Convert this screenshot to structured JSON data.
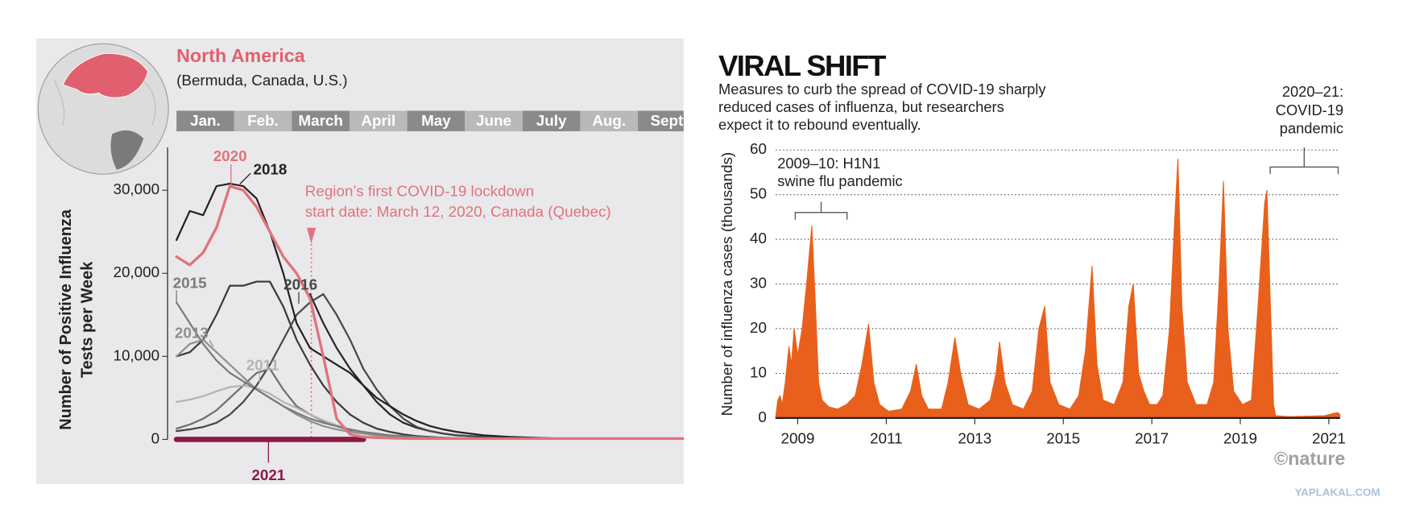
{
  "chart_data": [
    {
      "type": "line",
      "title": "North America",
      "subtitle": "(Bermuda, Canada, U.S.)",
      "months": [
        "Jan.",
        "Feb.",
        "March",
        "April",
        "May",
        "June",
        "July",
        "Aug.",
        "Sept"
      ],
      "ylabel": [
        "Number of Positive Influenza",
        "Tests per Week"
      ],
      "ylim": [
        0,
        35000
      ],
      "yticks": [
        0,
        {
          "value": 10000,
          "label": "10,000"
        },
        {
          "value": 20000,
          "label": "20,000"
        },
        {
          "value": 30000,
          "label": "30,000"
        }
      ],
      "annotation": [
        "Region’s first COVID-19 lockdown",
        "start date: March 12, 2020, Canada (Quebec)"
      ],
      "series": [
        {
          "color": "#3a3a3a",
          "values": [
            10000,
            10500,
            12000,
            15000,
            18500,
            18500,
            19000,
            19000,
            16000,
            12000,
            9000,
            6500,
            4500,
            3000,
            2000,
            1300,
            900,
            600,
            400,
            300,
            200,
            150,
            100,
            100,
            100,
            100,
            100,
            100,
            100,
            100,
            100,
            100,
            100,
            100,
            100,
            100,
            100,
            100,
            100
          ]
        },
        {
          "color": "#262626",
          "values": [
            null,
            null,
            null,
            null,
            null,
            null,
            null,
            null,
            null,
            null,
            17500,
            14000,
            11000,
            8500,
            6500,
            4500,
            3000,
            2000,
            1400,
            1000,
            700,
            500,
            400,
            300,
            250,
            200,
            150,
            120,
            100,
            100,
            100,
            100,
            100,
            100,
            100,
            100,
            100,
            100,
            100
          ]
        },
        {
          "color": "#6e6e6e",
          "values": [
            1300,
            1800,
            2500,
            3500,
            5000,
            6500,
            8000,
            8500,
            6000,
            4000,
            3000,
            2200,
            1600,
            1100,
            800,
            500,
            300,
            200,
            150,
            100,
            100,
            100,
            100,
            100,
            100,
            100,
            100,
            100,
            100,
            100,
            100,
            100,
            100,
            100,
            100,
            100,
            100,
            100,
            100
          ]
        },
        {
          "name": "2011",
          "color": "#b4b4b4",
          "values": [
            4500,
            4800,
            5200,
            5800,
            6300,
            6500,
            6200,
            5500,
            4500,
            3800,
            3000,
            2300,
            1700,
            1200,
            800,
            500,
            300,
            200,
            150,
            100,
            100,
            100,
            100,
            100,
            100,
            100,
            100,
            100,
            100,
            100,
            100,
            100,
            100,
            100,
            100,
            100,
            100,
            100,
            100
          ]
        },
        {
          "name": "2013",
          "color": "#8f8f8f",
          "values": [
            10000,
            11500,
            12000,
            10500,
            9000,
            7500,
            6000,
            5000,
            4000,
            3000,
            2200,
            1600,
            1200,
            900,
            700,
            500,
            400,
            300,
            200,
            150,
            100,
            100,
            100,
            100,
            100,
            100,
            100,
            100,
            100,
            100,
            100,
            100,
            100,
            100,
            100,
            100,
            100,
            100,
            100
          ]
        },
        {
          "name": "2015",
          "color": "#7a7a7a",
          "values": [
            16500,
            14000,
            11500,
            9500,
            8000,
            7000,
            6000,
            5000,
            4000,
            3200,
            2500,
            2000,
            1600,
            1200,
            900,
            700,
            500,
            400,
            300,
            250,
            200,
            150,
            100,
            100,
            100,
            100,
            100,
            100,
            100,
            100,
            100,
            100,
            100,
            100,
            100,
            100,
            100,
            100,
            100
          ]
        },
        {
          "name": "2016",
          "color": "#474747",
          "values": [
            1000,
            1200,
            1500,
            2000,
            3000,
            4500,
            6500,
            9000,
            12000,
            15000,
            16500,
            17500,
            15000,
            12000,
            8500,
            6000,
            4000,
            2500,
            1500,
            1000,
            700,
            500,
            400,
            300,
            200,
            150,
            100,
            100,
            100,
            100,
            100,
            100,
            100,
            100,
            100,
            100,
            100,
            100,
            100
          ]
        },
        {
          "name": "2018",
          "color": "#222222",
          "values": [
            24000,
            27500,
            27000,
            30500,
            30800,
            30500,
            29000,
            25000,
            20000,
            14000,
            11000,
            10000,
            9000,
            8000,
            6500,
            5000,
            4000,
            3000,
            2200,
            1600,
            1200,
            900,
            700,
            500,
            400,
            300,
            250,
            200,
            150,
            100,
            100,
            100,
            100,
            100,
            100,
            100,
            100,
            100,
            100
          ]
        },
        {
          "name": "2021",
          "color": "#8b1a44",
          "values": [
            0,
            0,
            0,
            0,
            0,
            0,
            0,
            0,
            0,
            0,
            0,
            0,
            0,
            0,
            0,
            null,
            null,
            null,
            null,
            null,
            null,
            null,
            null,
            null,
            null,
            null,
            null,
            null,
            null,
            null,
            null,
            null,
            null,
            null,
            null,
            null,
            null,
            null,
            null
          ]
        },
        {
          "name": "2020",
          "color": "#e0737b",
          "values": [
            22000,
            21000,
            22500,
            25500,
            30500,
            30000,
            28000,
            25000,
            22000,
            20000,
            17000,
            10000,
            2500,
            600,
            300,
            200,
            150,
            120,
            100,
            100,
            100,
            100,
            100,
            100,
            100,
            100,
            100,
            100,
            100,
            100,
            100,
            100,
            100,
            100,
            100,
            100,
            100,
            100,
            100
          ]
        }
      ]
    },
    {
      "type": "area",
      "title": "VIRAL SHIFT",
      "subtitle": [
        "Measures to curb the spread of COVID-19 sharply",
        "reduced cases of influenza, but researchers",
        "expect it to rebound eventually."
      ],
      "ylabel": "Number of influenza cases (thousands)",
      "xlim": [
        2009,
        2021.75
      ],
      "xticks": [
        {
          "value": 2009.5,
          "label": "2009"
        },
        {
          "value": 2011.5,
          "label": "2011"
        },
        {
          "value": 2013.5,
          "label": "2013"
        },
        {
          "value": 2015.5,
          "label": "2015"
        },
        {
          "value": 2017.5,
          "label": "2017"
        },
        {
          "value": 2019.5,
          "label": "2019"
        },
        {
          "value": 2021.5,
          "label": "2021"
        }
      ],
      "ylim": [
        0,
        60
      ],
      "yticks": [
        0,
        10,
        20,
        30,
        40,
        50,
        60
      ],
      "grid": true,
      "color": "#e8601c",
      "x": [
        2009.0,
        2009.05,
        2009.1,
        2009.15,
        2009.22,
        2009.3,
        2009.36,
        2009.42,
        2009.5,
        2009.6,
        2009.7,
        2009.82,
        2009.9,
        2009.97,
        2010.05,
        2010.2,
        2010.4,
        2010.6,
        2010.8,
        2010.95,
        2011.1,
        2011.22,
        2011.35,
        2011.55,
        2011.85,
        2012.05,
        2012.18,
        2012.3,
        2012.45,
        2012.75,
        2012.9,
        2013.05,
        2013.18,
        2013.35,
        2013.6,
        2013.85,
        2013.98,
        2014.06,
        2014.18,
        2014.35,
        2014.6,
        2014.8,
        2014.95,
        2015.08,
        2015.2,
        2015.4,
        2015.65,
        2015.85,
        2016.0,
        2016.15,
        2016.26,
        2016.4,
        2016.65,
        2016.85,
        2016.98,
        2017.08,
        2017.2,
        2017.32,
        2017.45,
        2017.62,
        2017.75,
        2017.9,
        2018.02,
        2018.09,
        2018.18,
        2018.3,
        2018.5,
        2018.75,
        2018.9,
        2019.02,
        2019.12,
        2019.22,
        2019.35,
        2019.55,
        2019.75,
        2019.9,
        2020.05,
        2020.1,
        2020.18,
        2020.25,
        2020.3,
        2020.6,
        2021.0,
        2021.4,
        2021.6,
        2021.7,
        2021.75
      ],
      "values": [
        0,
        4,
        5,
        3,
        8,
        16,
        12,
        20,
        14,
        20,
        30,
        43,
        25,
        8,
        4,
        2.5,
        2,
        3,
        5,
        12,
        21,
        8,
        3,
        1.5,
        2,
        6,
        12,
        5,
        2,
        2,
        8,
        18,
        10,
        3,
        2,
        4,
        10,
        17,
        8,
        3,
        2,
        6,
        20,
        25,
        8,
        3,
        2,
        5,
        15,
        34,
        12,
        4,
        3,
        8,
        25,
        30,
        10,
        6,
        3,
        3,
        5,
        20,
        45,
        58,
        25,
        8,
        3,
        3,
        8,
        30,
        53,
        20,
        6,
        3,
        4,
        25,
        48,
        51,
        25,
        3,
        0.5,
        0.3,
        0.4,
        0.5,
        1,
        1.2,
        0.8
      ],
      "annotations": [
        [
          "2009–10: H1N1",
          "swine flu pandemic"
        ],
        [
          "2020–21:",
          "COVID-19",
          "pandemic"
        ]
      ],
      "credit": "©nature"
    }
  ],
  "watermark": "YAPLAKAL.COM"
}
